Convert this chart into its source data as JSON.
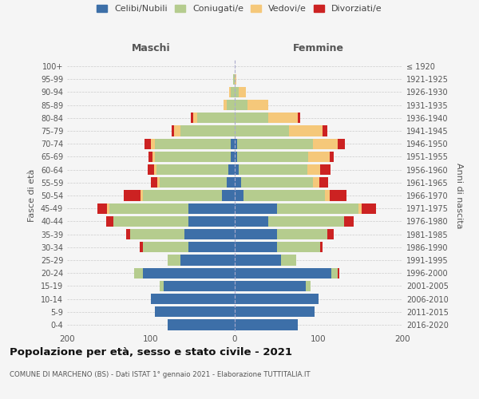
{
  "age_groups": [
    "0-4",
    "5-9",
    "10-14",
    "15-19",
    "20-24",
    "25-29",
    "30-34",
    "35-39",
    "40-44",
    "45-49",
    "50-54",
    "55-59",
    "60-64",
    "65-69",
    "70-74",
    "75-79",
    "80-84",
    "85-89",
    "90-94",
    "95-99",
    "100+"
  ],
  "birth_years": [
    "2016-2020",
    "2011-2015",
    "2006-2010",
    "2001-2005",
    "1996-2000",
    "1991-1995",
    "1986-1990",
    "1981-1985",
    "1976-1980",
    "1971-1975",
    "1966-1970",
    "1961-1965",
    "1956-1960",
    "1951-1955",
    "1946-1950",
    "1941-1945",
    "1936-1940",
    "1931-1935",
    "1926-1930",
    "1921-1925",
    "≤ 1920"
  ],
  "males": {
    "celibi": [
      80,
      95,
      100,
      85,
      110,
      65,
      55,
      60,
      55,
      55,
      15,
      10,
      8,
      5,
      5,
      0,
      0,
      0,
      0,
      0,
      0
    ],
    "coniugati": [
      0,
      0,
      0,
      5,
      10,
      15,
      55,
      65,
      90,
      95,
      95,
      80,
      85,
      90,
      90,
      65,
      45,
      10,
      5,
      2,
      0
    ],
    "vedovi": [
      0,
      0,
      0,
      0,
      0,
      0,
      0,
      0,
      0,
      2,
      2,
      2,
      3,
      3,
      5,
      7,
      5,
      3,
      2,
      0,
      0
    ],
    "divorziati": [
      0,
      0,
      0,
      0,
      0,
      0,
      3,
      5,
      8,
      12,
      20,
      8,
      8,
      5,
      8,
      3,
      2,
      0,
      0,
      0,
      0
    ]
  },
  "females": {
    "nubili": [
      75,
      95,
      100,
      85,
      115,
      55,
      50,
      50,
      40,
      50,
      10,
      8,
      5,
      3,
      3,
      0,
      0,
      0,
      0,
      0,
      0
    ],
    "coniugate": [
      0,
      0,
      0,
      5,
      8,
      18,
      52,
      60,
      90,
      98,
      98,
      85,
      82,
      85,
      90,
      65,
      40,
      15,
      5,
      0,
      0
    ],
    "vedove": [
      0,
      0,
      0,
      0,
      0,
      0,
      0,
      0,
      0,
      3,
      5,
      8,
      15,
      25,
      30,
      40,
      35,
      25,
      8,
      2,
      0
    ],
    "divorziate": [
      0,
      0,
      0,
      0,
      2,
      0,
      3,
      8,
      12,
      18,
      20,
      10,
      12,
      5,
      8,
      5,
      3,
      0,
      0,
      0,
      0
    ]
  },
  "colors": {
    "celibi": "#3d6fa8",
    "coniugati": "#b5cc8e",
    "vedovi": "#f5c87a",
    "divorziati": "#cc2222"
  },
  "title": "Popolazione per età, sesso e stato civile - 2021",
  "subtitle": "COMUNE DI MARCHENO (BS) - Dati ISTAT 1° gennaio 2021 - Elaborazione TUTTITALIA.IT",
  "xlabel_left": "Maschi",
  "xlabel_right": "Femmine",
  "ylabel_left": "Fasce di età",
  "ylabel_right": "Anni di nascita",
  "xlim": 200,
  "bg_color": "#f5f5f5",
  "legend_labels": [
    "Celibi/Nubili",
    "Coniugati/e",
    "Vedovi/e",
    "Divorziati/e"
  ]
}
